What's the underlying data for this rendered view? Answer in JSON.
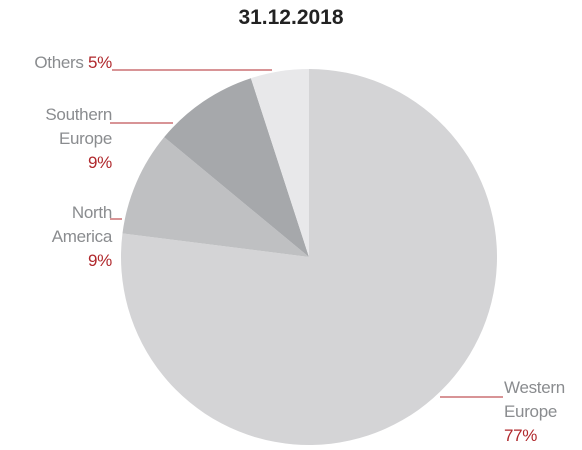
{
  "chart_data": {
    "type": "pie",
    "title": "31.12.2018",
    "categories": [
      "Western Europe",
      "North America",
      "Southern Europe",
      "Others"
    ],
    "values": [
      77,
      9,
      9,
      5
    ],
    "value_labels": [
      "77%",
      "9%",
      "9%",
      "5%"
    ],
    "colors": [
      "#d4d4d6",
      "#bfc0c2",
      "#a6a8ab",
      "#e8e8ea"
    ]
  }
}
